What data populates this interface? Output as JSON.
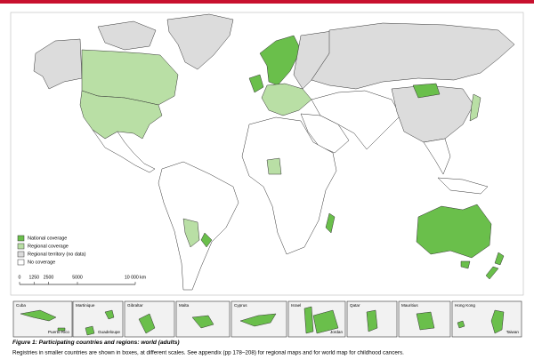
{
  "legend": {
    "items": [
      {
        "label": "National coverage",
        "color": "#6abf4b"
      },
      {
        "label": "Regional coverage",
        "color": "#b9dfa5"
      },
      {
        "label": "Regional territory (no data)",
        "color": "#dcdcdc"
      },
      {
        "label": "No coverage",
        "color": "#ffffff"
      }
    ]
  },
  "scale": {
    "ticks": [
      0,
      1250,
      2500,
      5000,
      {
        "value": 10000,
        "label": "10 000 km"
      }
    ]
  },
  "insets": [
    {
      "labels": [
        "Cuba",
        "Puerto Rico"
      ]
    },
    {
      "labels": [
        "Martinique",
        "Guadeloupe"
      ]
    },
    {
      "labels": [
        "Gibraltar"
      ]
    },
    {
      "labels": [
        "Malta"
      ]
    },
    {
      "labels": [
        "Cyprus"
      ]
    },
    {
      "labels": [
        "Israel",
        "Jordan"
      ]
    },
    {
      "labels": [
        "Qatar"
      ]
    },
    {
      "labels": [
        "Mauritius"
      ]
    },
    {
      "labels": [
        "Hong Kong",
        "Taiwan"
      ]
    }
  ],
  "caption": {
    "title": "Figure 1: Participating countries and regions: world (adults)",
    "text": "Registries in smaller countries are shown in boxes, at different scales. See appendix (pp 178–208) for regional maps and for world map for childhood cancers."
  }
}
